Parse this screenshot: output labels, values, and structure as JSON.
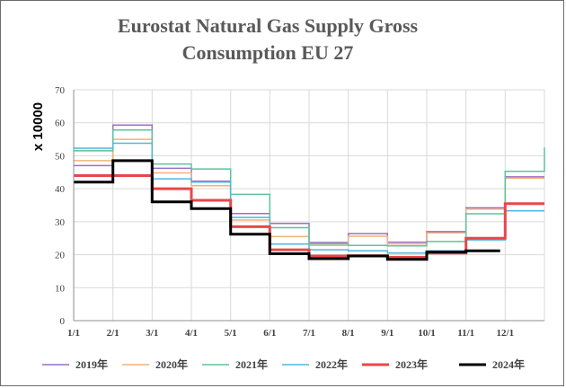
{
  "chart_data": {
    "type": "line",
    "title_lines": [
      "Eurostat Natural Gas Supply Gross",
      "Consumption EU 27"
    ],
    "xlabel": "",
    "ylabel": "x 10000",
    "ylim": [
      0,
      70
    ],
    "yticks": [
      0,
      10,
      20,
      30,
      40,
      50,
      60,
      70
    ],
    "xlim": [
      0,
      12
    ],
    "xtick_labels": [
      "1/1",
      "2/1",
      "3/1",
      "4/1",
      "5/1",
      "6/1",
      "7/1",
      "8/1",
      "9/1",
      "10/1",
      "11/1",
      "12/1"
    ],
    "grid": true,
    "legend_position": "bottom",
    "series": [
      {
        "name": "2019年",
        "color": "#9b6fc4",
        "width": 1.5,
        "values": [
          47,
          59.3,
          46.2,
          42.3,
          32.5,
          29.5,
          23.7,
          26.4,
          23.8,
          27,
          34.2,
          43.6
        ],
        "last_x": 12
      },
      {
        "name": "2020年",
        "color": "#f0b27a",
        "width": 1.5,
        "values": [
          48.5,
          55,
          44.8,
          40.9,
          30.5,
          25.5,
          22.8,
          25.6,
          23.3,
          26.6,
          33.8,
          43.2
        ],
        "last_x": 12
      },
      {
        "name": "2021年",
        "color": "#5cc39b",
        "width": 1.5,
        "values": [
          51.5,
          57.8,
          47.5,
          46,
          38.3,
          28.2,
          23.3,
          22.8,
          22.7,
          24,
          32.4,
          45.3
        ],
        "end_value": 52.5,
        "last_x": 12
      },
      {
        "name": "2022年",
        "color": "#4fb8e0",
        "width": 1.5,
        "values": [
          52.3,
          53.8,
          43,
          42,
          31.3,
          23.2,
          21.5,
          21.2,
          20.5,
          21.2,
          24.5,
          33.3
        ],
        "last_x": 12
      },
      {
        "name": "2023年",
        "color": "#e8474a",
        "width": 3,
        "values": [
          44,
          44,
          40,
          36.5,
          28.5,
          21.5,
          19.6,
          19.7,
          19.2,
          20.5,
          25,
          35.5
        ],
        "last_x": 12
      },
      {
        "name": "2024年",
        "color": "#000000",
        "width": 3,
        "values": [
          42,
          48.5,
          36,
          34,
          26.2,
          20.3,
          18.8,
          19.6,
          18.6,
          20.8,
          21.2
        ],
        "last_x": 10.87
      }
    ]
  }
}
